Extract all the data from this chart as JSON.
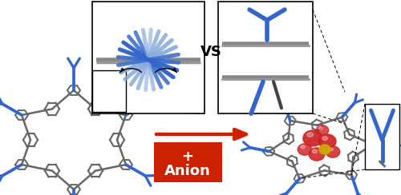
{
  "bg_color": "#ffffff",
  "arrow_color": "#cc2200",
  "box_color": "#cc2200",
  "box_text_color": "#ffffff",
  "vs_text": "VS",
  "mol_color_gray": "#666666",
  "mol_color_gray2": "#888888",
  "mol_color_blue": "#3366cc",
  "mol_color_blue_light": "#88aadd",
  "mol_color_red": "#cc2222",
  "mol_color_yellow": "#ccaa00"
}
